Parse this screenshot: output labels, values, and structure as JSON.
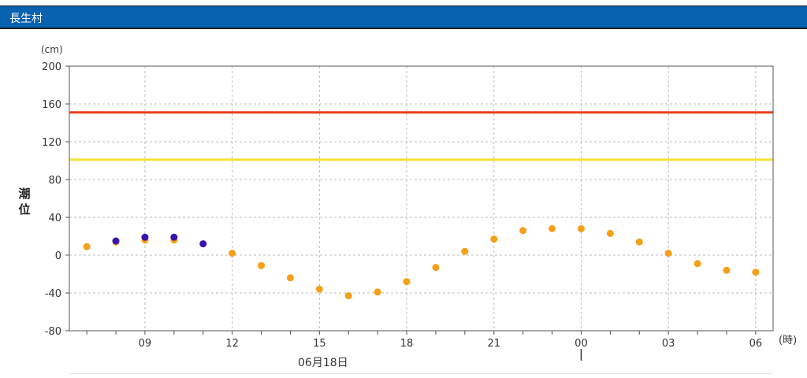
{
  "header": {
    "title": "長生村"
  },
  "chart_data": {
    "type": "scatter",
    "unit_label": "(cm)",
    "ylabel": "潮位",
    "xunit_label": "(時)",
    "date_label": "06月18日",
    "ylim": [
      -80,
      200
    ],
    "yticks": [
      -80,
      -40,
      0,
      40,
      80,
      120,
      160,
      200
    ],
    "x_hours": [
      9,
      12,
      15,
      18,
      21,
      24,
      27,
      30
    ],
    "xtick_labels": [
      "09",
      "12",
      "15",
      "18",
      "21",
      "00",
      "03",
      "06"
    ],
    "xlim": [
      6.4,
      30.6
    ],
    "grid": true,
    "reference_lines": [
      {
        "value": 151,
        "color": "#e8401c"
      },
      {
        "value": 101,
        "color": "#f2e23a"
      }
    ],
    "series": [
      {
        "color": "#f5a01a",
        "points": [
          {
            "x": 7,
            "y": 9
          },
          {
            "x": 8,
            "y": 14
          },
          {
            "x": 9,
            "y": 16
          },
          {
            "x": 10,
            "y": 16
          },
          {
            "x": 12,
            "y": 2
          },
          {
            "x": 13,
            "y": -11
          },
          {
            "x": 14,
            "y": -24
          },
          {
            "x": 15,
            "y": -36
          },
          {
            "x": 16,
            "y": -43
          },
          {
            "x": 17,
            "y": -39
          },
          {
            "x": 18,
            "y": -28
          },
          {
            "x": 19,
            "y": -13
          },
          {
            "x": 20,
            "y": 4
          },
          {
            "x": 21,
            "y": 17
          },
          {
            "x": 22,
            "y": 26
          },
          {
            "x": 23,
            "y": 28
          },
          {
            "x": 24,
            "y": 28
          },
          {
            "x": 25,
            "y": 23
          },
          {
            "x": 26,
            "y": 14
          },
          {
            "x": 27,
            "y": 2
          },
          {
            "x": 28,
            "y": -9
          },
          {
            "x": 29,
            "y": -16
          },
          {
            "x": 30,
            "y": -18
          }
        ]
      },
      {
        "color": "#3a13b0",
        "points": [
          {
            "x": 8,
            "y": 15
          },
          {
            "x": 9,
            "y": 19
          },
          {
            "x": 10,
            "y": 19
          },
          {
            "x": 11,
            "y": 12
          }
        ]
      }
    ],
    "current_time_x": 24
  }
}
